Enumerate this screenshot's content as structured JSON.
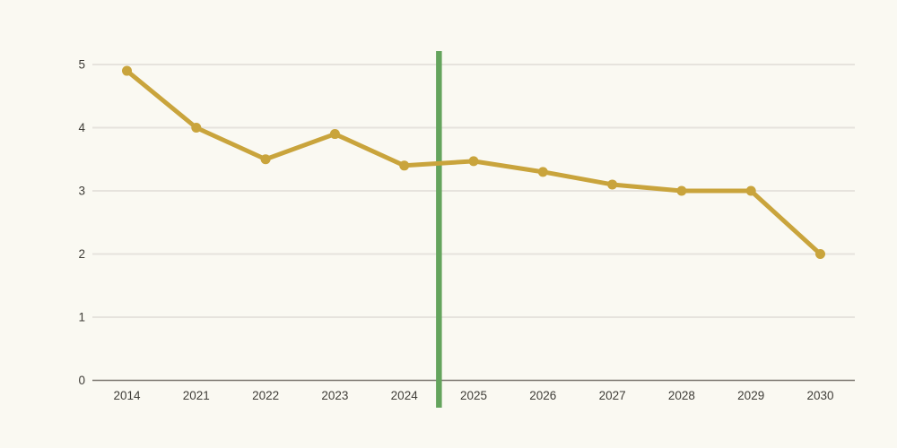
{
  "chart_data": {
    "type": "line",
    "title": "",
    "xlabel": "",
    "ylabel": "",
    "categories": [
      "2014",
      "2021",
      "2022",
      "2023",
      "2024",
      "2025",
      "2026",
      "2027",
      "2028",
      "2029",
      "2030"
    ],
    "series": [
      {
        "name": "value",
        "values": [
          4.9,
          4.0,
          3.5,
          3.9,
          3.4,
          3.47,
          3.3,
          3.1,
          3.0,
          3.0,
          2.0
        ],
        "color": "#C9A43C",
        "marker": "circle"
      }
    ],
    "ylim": [
      0,
      5
    ],
    "y_ticks": [
      0,
      1,
      2,
      3,
      4,
      5
    ],
    "grid": "horizontal",
    "legend": false,
    "annotations": [
      {
        "type": "vline",
        "name": "forecast-divider",
        "x_between": [
          "2024",
          "2025"
        ],
        "color": "#64A45D"
      }
    ]
  },
  "colors": {
    "background": "#FAF9F2",
    "gridline": "#E6E3DD",
    "axis": "#7A766F",
    "tick_label": "#3F3D38",
    "line": "#C9A43C",
    "divider": "#64A45D"
  }
}
